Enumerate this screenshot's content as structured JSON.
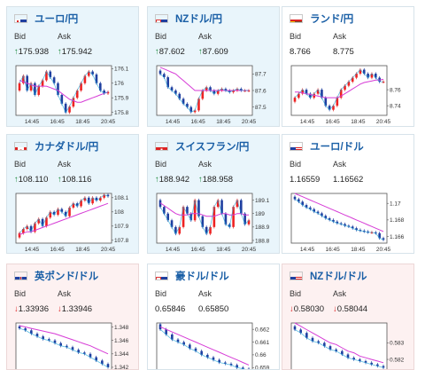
{
  "labels": {
    "bid": "Bid",
    "ask": "Ask"
  },
  "cards": [
    {
      "pair": "ユーロ/円",
      "dir": "up",
      "bid": "175.938",
      "ask": "175.942",
      "flag": "eu",
      "chart_data": {
        "type": "line",
        "series": [
          {
            "values": [
              176.0,
              176.05,
              175.95,
              176.0,
              175.92,
              175.98,
              176.02,
              176.08,
              176.04,
              176.0,
              175.92,
              175.86,
              175.8,
              175.84,
              175.9,
              175.95,
              176.0,
              176.05,
              176.08,
              176.06,
              176.0,
              175.95,
              175.93,
              175.94
            ]
          },
          {
            "values": [
              176.02,
              176.01,
              176.0,
              175.99,
              175.98,
              175.98,
              175.98,
              175.98,
              175.97,
              175.96,
              175.95,
              175.93,
              175.91,
              175.89,
              175.88,
              175.87,
              175.87,
              175.88,
              175.89,
              175.9,
              175.91,
              175.92,
              175.93,
              175.94
            ]
          }
        ],
        "yticks": [
          "176.1",
          "176",
          "175.9",
          "175.8"
        ],
        "ylim": [
          175.78,
          176.12
        ],
        "xticks": [
          "14:45",
          "16:45",
          "18:45",
          "20:45"
        ]
      }
    },
    {
      "pair": "NZドル/円",
      "dir": "up",
      "bid": "87.602",
      "ask": "87.609",
      "flag": "nz",
      "chart_data": {
        "type": "line",
        "series": [
          {
            "values": [
              87.7,
              87.68,
              87.62,
              87.6,
              87.58,
              87.55,
              87.52,
              87.5,
              87.47,
              87.48,
              87.55,
              87.6,
              87.62,
              87.6,
              87.58,
              87.6,
              87.61,
              87.6,
              87.59,
              87.6,
              87.61,
              87.6,
              87.6,
              87.6
            ]
          },
          {
            "values": [
              87.74,
              87.73,
              87.72,
              87.71,
              87.7,
              87.68,
              87.66,
              87.64,
              87.62,
              87.6,
              87.6,
              87.6,
              87.6,
              87.6,
              87.6,
              87.6,
              87.6,
              87.6,
              87.6,
              87.6,
              87.6,
              87.6,
              87.6,
              87.6
            ]
          }
        ],
        "yticks": [
          "87.7",
          "87.6",
          "87.5"
        ],
        "ylim": [
          87.45,
          87.75
        ],
        "xticks": [
          "14:45",
          "16:45",
          "18:45",
          "20:45"
        ]
      }
    },
    {
      "pair": "ランド/円",
      "dir": "neutral",
      "bid": "8.766",
      "ask": "8.775",
      "flag": "za",
      "chart_data": {
        "type": "line",
        "series": [
          {
            "values": [
              8.75,
              8.755,
              8.76,
              8.755,
              8.75,
              8.755,
              8.76,
              8.75,
              8.74,
              8.735,
              8.74,
              8.75,
              8.76,
              8.765,
              8.77,
              8.775,
              8.78,
              8.785,
              8.78,
              8.775,
              8.78,
              8.775,
              8.77,
              8.77
            ]
          },
          {
            "values": [
              8.757,
              8.757,
              8.756,
              8.755,
              8.754,
              8.753,
              8.752,
              8.751,
              8.75,
              8.75,
              8.75,
              8.75,
              8.752,
              8.755,
              8.758,
              8.761,
              8.764,
              8.767,
              8.769,
              8.77,
              8.771,
              8.772,
              8.772,
              8.773
            ]
          }
        ],
        "yticks": [
          "8.76",
          "8.74"
        ],
        "ylim": [
          8.728,
          8.79
        ],
        "xticks": [
          "14:45",
          "16:45",
          "18:45",
          "20:45"
        ]
      }
    },
    {
      "pair": "カナダドル/円",
      "dir": "up",
      "bid": "108.110",
      "ask": "108.116",
      "flag": "ca",
      "chart_data": {
        "type": "line",
        "series": [
          {
            "values": [
              107.85,
              107.88,
              107.9,
              107.86,
              107.92,
              107.95,
              107.9,
              107.96,
              108.0,
              107.98,
              108.02,
              108.0,
              107.97,
              108.03,
              108.06,
              108.04,
              108.08,
              108.1,
              108.06,
              108.1,
              108.08,
              108.1,
              108.12,
              108.11
            ]
          },
          {
            "values": [
              107.84,
              107.85,
              107.86,
              107.86,
              107.87,
              107.88,
              107.89,
              107.9,
              107.91,
              107.92,
              107.93,
              107.94,
              107.95,
              107.96,
              107.97,
              107.98,
              107.99,
              108.0,
              108.01,
              108.02,
              108.03,
              108.04,
              108.05,
              108.06
            ]
          }
        ],
        "yticks": [
          "108.1",
          "108",
          "107.9",
          "107.8"
        ],
        "ylim": [
          107.78,
          108.13
        ],
        "xticks": [
          "14:45",
          "16:45",
          "18:45",
          "20:45"
        ]
      }
    },
    {
      "pair": "スイスフラン/円",
      "dir": "up",
      "bid": "188.942",
      "ask": "188.958",
      "flag": "ch",
      "chart_data": {
        "type": "line",
        "series": [
          {
            "values": [
              189.05,
              189.0,
              188.95,
              188.9,
              188.85,
              188.9,
              189.05,
              189.0,
              188.95,
              189.1,
              188.98,
              188.9,
              188.85,
              188.9,
              189.05,
              189.1,
              189.0,
              188.92,
              188.9,
              189.05,
              189.1,
              189.0,
              188.92,
              188.95
            ]
          },
          {
            "values": [
              189.08,
              189.06,
              189.04,
              189.02,
              189.0,
              188.99,
              188.99,
              188.99,
              189.0,
              189.0,
              189.0,
              188.99,
              188.98,
              188.98,
              188.98,
              188.99,
              189.0,
              189.0,
              188.99,
              188.99,
              189.0,
              189.0,
              188.99,
              188.99
            ]
          }
        ],
        "yticks": [
          "189.1",
          "189",
          "188.9",
          "188.8"
        ],
        "ylim": [
          188.78,
          189.15
        ],
        "xticks": [
          "14:45",
          "16:45",
          "18:45",
          "20:45"
        ]
      }
    },
    {
      "pair": "ユーロ/ドル",
      "dir": "neutral",
      "bid": "1.16559",
      "ask": "1.16562",
      "flag": "us",
      "chart_data": {
        "type": "line",
        "series": [
          {
            "values": [
              1.1705,
              1.1702,
              1.1698,
              1.1695,
              1.1693,
              1.169,
              1.1688,
              1.1685,
              1.1682,
              1.168,
              1.1678,
              1.1676,
              1.1675,
              1.1673,
              1.1672,
              1.167,
              1.1668,
              1.1667,
              1.1666,
              1.1665,
              1.1665,
              1.1664,
              1.1658,
              1.1656
            ]
          },
          {
            "values": [
              1.1712,
              1.171,
              1.1708,
              1.1706,
              1.1704,
              1.1702,
              1.17,
              1.1698,
              1.1696,
              1.1694,
              1.1692,
              1.169,
              1.1688,
              1.1686,
              1.1684,
              1.1682,
              1.168,
              1.1678,
              1.1676,
              1.1674,
              1.1672,
              1.167,
              1.1668,
              1.1666
            ]
          }
        ],
        "yticks": [
          "1.17",
          "1.168",
          "1.166"
        ],
        "ylim": [
          1.1652,
          1.1712
        ],
        "xticks": [
          "14:45",
          "16:45",
          "18:45",
          "20:45"
        ]
      }
    },
    {
      "pair": "英ポンド/ドル",
      "dir": "down",
      "bid": "1.33936",
      "ask": "1.33946",
      "flag": "uk",
      "chart_data": {
        "type": "line",
        "series": [
          {
            "values": [
              1.3478,
              1.3475,
              1.347,
              1.3466,
              1.3462,
              1.346,
              1.3456,
              1.3452,
              1.345,
              1.3446,
              1.3442,
              1.344,
              1.3435,
              1.343,
              1.3425,
              1.342
            ]
          },
          {
            "values": [
              1.3482,
              1.348,
              1.3478,
              1.3476,
              1.3474,
              1.3472,
              1.347,
              1.3467,
              1.3464,
              1.3461,
              1.3458,
              1.3455,
              1.3452,
              1.3448,
              1.3444,
              1.344
            ]
          }
        ],
        "yticks": [
          "1.348",
          "1.346",
          "1.344",
          "1.342"
        ],
        "ylim": [
          1.3412,
          1.3486
        ]
      }
    },
    {
      "pair": "豪ドル/ドル",
      "dir": "neutral",
      "bid": "0.65846",
      "ask": "0.65850",
      "flag": "au",
      "chart_data": {
        "type": "line",
        "series": [
          {
            "values": [
              0.662,
              0.6616,
              0.6612,
              0.661,
              0.6608,
              0.6605,
              0.6603,
              0.66,
              0.6598,
              0.6596,
              0.6594,
              0.6593,
              0.6592,
              0.659,
              0.6589,
              0.6588
            ]
          },
          {
            "values": [
              0.6622,
              0.662,
              0.6618,
              0.6616,
              0.6614,
              0.6612,
              0.661,
              0.6608,
              0.6606,
              0.6604,
              0.6602,
              0.66,
              0.6598,
              0.6596,
              0.6594,
              0.6592
            ]
          }
        ],
        "yticks": [
          "0.662",
          "0.661",
          "0.66",
          "0.659"
        ],
        "ylim": [
          0.6586,
          0.6625
        ]
      }
    },
    {
      "pair": "NZドル/ドル",
      "dir": "down",
      "bid": "0.58030",
      "ask": "0.58044",
      "flag": "us",
      "chart_data": {
        "type": "line",
        "series": [
          {
            "values": [
              0.5838,
              0.5836,
              0.5833,
              0.5831,
              0.583,
              0.5828,
              0.5826,
              0.5825,
              0.5823,
              0.5821,
              0.582,
              0.5819,
              0.5818,
              0.5817,
              0.5816,
              0.5815
            ]
          },
          {
            "values": [
              0.5842,
              0.584,
              0.5838,
              0.5836,
              0.5834,
              0.5832,
              0.583,
              0.5829,
              0.5827,
              0.5825,
              0.5824,
              0.5822,
              0.5821,
              0.582,
              0.5819,
              0.5818
            ]
          }
        ],
        "yticks": [
          "0.583",
          "0.582",
          "0.581"
        ],
        "ylim": [
          0.5812,
          0.5842
        ]
      }
    }
  ]
}
